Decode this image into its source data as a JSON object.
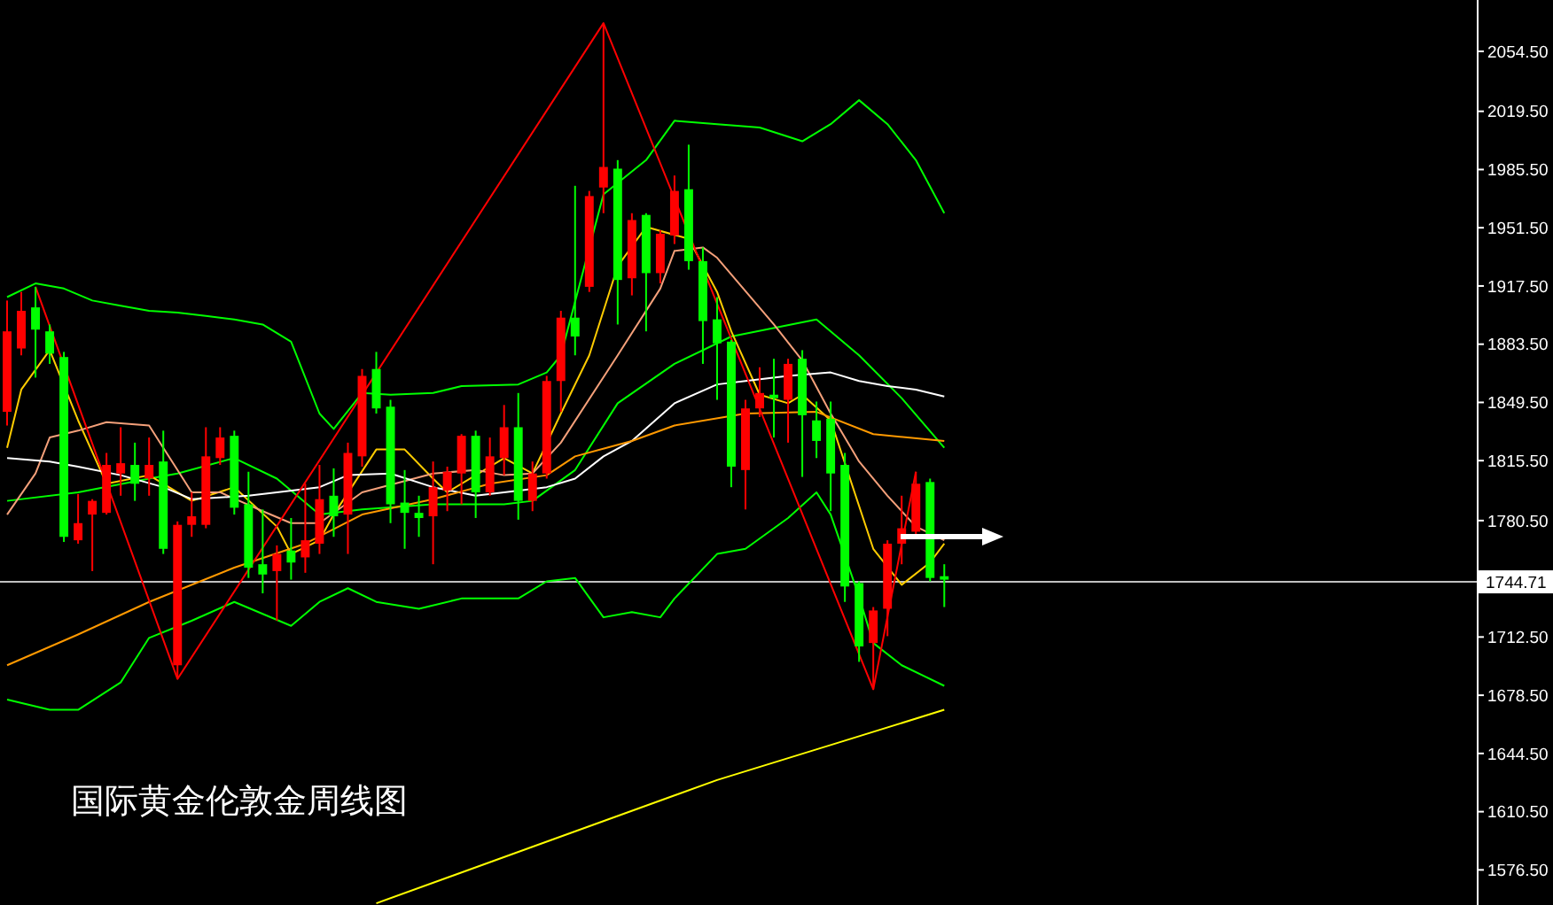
{
  "chart_data": {
    "type": "candlestick",
    "title": "国际黄金伦敦金周线图",
    "categories": [
      null,
      null,
      null,
      null,
      null,
      null,
      null,
      null,
      null,
      null,
      null,
      null,
      null,
      null,
      null,
      null,
      null,
      null,
      null,
      null,
      null,
      null,
      null,
      null,
      null,
      null,
      null,
      null,
      null,
      null,
      null,
      null,
      null,
      null,
      null,
      null,
      null,
      null,
      null,
      null,
      null,
      null,
      null,
      null,
      null,
      null,
      null,
      null,
      null,
      null,
      null,
      null,
      null,
      null,
      null,
      null,
      null,
      null,
      null,
      null,
      null,
      null,
      null,
      null,
      null,
      null,
      null,
      null,
      null,
      null,
      null,
      null,
      null,
      null,
      null,
      null,
      null,
      null,
      null,
      null,
      null,
      null,
      null,
      null,
      null,
      null,
      null,
      null,
      null,
      null,
      null,
      null,
      null,
      null,
      null,
      null,
      null,
      null,
      null,
      null,
      null,
      null,
      null,
      null
    ],
    "ohlc": [
      [
        1844,
        1909,
        1836,
        1891
      ],
      [
        1881,
        1914,
        1877,
        1903
      ],
      [
        1905,
        1917,
        1864,
        1892
      ],
      [
        1891,
        1895,
        1872,
        1878
      ],
      [
        1876,
        1879,
        1768,
        1771
      ],
      [
        1769,
        1796,
        1767,
        1779
      ],
      [
        1784,
        1793,
        1751,
        1792
      ],
      [
        1785,
        1820,
        1784,
        1813
      ],
      [
        1808,
        1835,
        1795,
        1814
      ],
      [
        1813,
        1826,
        1792,
        1802
      ],
      [
        1805,
        1829,
        1795,
        1813
      ],
      [
        1815,
        1833,
        1761,
        1764
      ],
      [
        1696,
        1780,
        1688,
        1778
      ],
      [
        1778,
        1797,
        1771,
        1783
      ],
      [
        1778,
        1835,
        1776,
        1818
      ],
      [
        1817,
        1835,
        1813,
        1829
      ],
      [
        1830,
        1833,
        1784,
        1788
      ],
      [
        1790,
        1809,
        1747,
        1753
      ],
      [
        1755,
        1787,
        1738,
        1749
      ],
      [
        1751,
        1766,
        1722,
        1761
      ],
      [
        1763,
        1782,
        1746,
        1756
      ],
      [
        1759,
        1802,
        1750,
        1769
      ],
      [
        1767,
        1813,
        1761,
        1793
      ],
      [
        1795,
        1811,
        1771,
        1783
      ],
      [
        1784,
        1826,
        1761,
        1820
      ],
      [
        1818,
        1869,
        1812,
        1865
      ],
      [
        1869,
        1879,
        1843,
        1846
      ],
      [
        1847,
        1851,
        1779,
        1790
      ],
      [
        1791,
        1810,
        1764,
        1785
      ],
      [
        1785,
        1795,
        1771,
        1782
      ],
      [
        1783,
        1815,
        1755,
        1800
      ],
      [
        1798,
        1812,
        1786,
        1809
      ],
      [
        1808,
        1831,
        1790,
        1830
      ],
      [
        1830,
        1833,
        1782,
        1797
      ],
      [
        1797,
        1829,
        1795,
        1818
      ],
      [
        1817,
        1848,
        1807,
        1835
      ],
      [
        1835,
        1855,
        1781,
        1792
      ],
      [
        1792,
        1815,
        1786,
        1808
      ],
      [
        1808,
        1865,
        1805,
        1862
      ],
      [
        1862,
        1903,
        1844,
        1899
      ],
      [
        1899,
        1976,
        1877,
        1888
      ],
      [
        1917,
        1973,
        1914,
        1970
      ],
      [
        1975,
        2071,
        1960,
        1987
      ],
      [
        1986,
        1991,
        1895,
        1921
      ],
      [
        1922,
        1960,
        1912,
        1956
      ],
      [
        1959,
        1960,
        1891,
        1925
      ],
      [
        1925,
        1950,
        1919,
        1948
      ],
      [
        1947,
        1982,
        1942,
        1973
      ],
      [
        1974,
        2000,
        1927,
        1932
      ],
      [
        1932,
        1940,
        1872,
        1897
      ],
      [
        1898,
        1911,
        1851,
        1884
      ],
      [
        1885,
        1886,
        1800,
        1812
      ],
      [
        1810,
        1851,
        1787,
        1846
      ],
      [
        1846,
        1870,
        1841,
        1855
      ],
      [
        1854,
        1875,
        1829,
        1852
      ],
      [
        1851,
        1875,
        1826,
        1872
      ],
      [
        1875,
        1880,
        1806,
        1842
      ],
      [
        1839,
        1850,
        1817,
        1827
      ],
      [
        1840,
        1850,
        1786,
        1808
      ],
      [
        1813,
        1820,
        1733,
        1742
      ],
      [
        1744,
        1745,
        1698,
        1707
      ],
      [
        1709,
        1730,
        1682,
        1728
      ],
      [
        1729,
        1769,
        1713,
        1767
      ],
      [
        1767,
        1795,
        1755,
        1776
      ],
      [
        1774,
        1809,
        1771,
        1802
      ],
      [
        1803,
        1805,
        1745,
        1747
      ],
      [
        1748,
        1755,
        1730,
        1746
      ],
      null,
      null,
      null,
      null,
      null,
      null,
      null,
      null,
      null,
      null,
      null,
      null,
      null,
      null,
      null,
      null,
      null,
      null,
      null,
      null,
      null,
      null,
      null,
      null,
      null,
      null,
      null,
      null,
      null,
      null,
      null,
      null,
      null,
      null,
      null,
      null,
      null
    ],
    "colors": [
      "#ff0000",
      "#ff0000",
      "#00ff00",
      "#00ff00",
      "#00ff00",
      "#ff0000",
      "#ff0000",
      "#ff0000",
      "#ff0000",
      "#00ff00",
      "#ff0000",
      "#00ff00",
      "#ff0000",
      "#ff0000",
      "#ff0000",
      "#ff0000",
      "#00ff00",
      "#00ff00",
      "#00ff00",
      "#ff0000",
      "#00ff00",
      "#ff0000",
      "#ff0000",
      "#00ff00",
      "#ff0000",
      "#ff0000",
      "#00ff00",
      "#00ff00",
      "#00ff00",
      "#00ff00",
      "#ff0000",
      "#ff0000",
      "#ff0000",
      "#00ff00",
      "#ff0000",
      "#ff0000",
      "#00ff00",
      "#ff0000",
      "#ff0000",
      "#ff0000",
      "#00ff00",
      "#ff0000",
      "#ff0000",
      "#00ff00",
      "#ff0000",
      "#00ff00",
      "#ff0000",
      "#ff0000",
      "#00ff00",
      "#00ff00",
      "#00ff00",
      "#00ff00",
      "#ff0000",
      "#ff0000",
      "#00ff00",
      "#ff0000",
      "#00ff00",
      "#00ff00",
      "#00ff00",
      "#00ff00",
      "#00ff00",
      "#ff0000",
      "#ff0000",
      "#ff0000",
      "#ff0000",
      "#00ff00",
      "#00ff00",
      null,
      null,
      null,
      null,
      null,
      null,
      null,
      null,
      null,
      null,
      null,
      null,
      null,
      null,
      null,
      null,
      null,
      null,
      null,
      null,
      null,
      null,
      null,
      null,
      null,
      null,
      null,
      null,
      null,
      null,
      null,
      null,
      null,
      null,
      null,
      null,
      null
    ],
    "series": [
      {
        "type": "line",
        "color": "#00ff00",
        "values": [
          1911,
          null,
          1919,
          null,
          1916,
          null,
          1909,
          null,
          1906,
          null,
          1903,
          null,
          1902,
          null,
          1900,
          null,
          1898,
          null,
          1895,
          null,
          1885,
          null,
          1843,
          1834,
          null,
          1855,
          null,
          1854,
          null,
          null,
          1855,
          null,
          1859,
          null,
          null,
          null,
          1860,
          null,
          1867,
          1877,
          null,
          null,
          1971,
          null,
          null,
          1991,
          null,
          2014,
          null,
          null,
          2012,
          null,
          null,
          2010,
          null,
          null,
          2002,
          null,
          2012,
          null,
          2026,
          null,
          2012,
          null,
          1991,
          null,
          1960,
          null,
          null,
          null,
          null,
          null,
          null,
          null,
          null,
          null,
          null,
          null,
          null,
          null,
          null,
          null,
          null,
          null,
          null,
          null,
          null,
          null,
          null,
          null,
          null,
          null,
          null,
          null,
          null,
          null,
          null,
          null,
          null,
          null,
          null,
          null,
          null,
          null
        ]
      },
      {
        "type": "line",
        "color": "#00ff00",
        "values": [
          1792,
          null,
          null,
          null,
          null,
          1797,
          null,
          null,
          null,
          null,
          1805,
          null,
          1808,
          null,
          null,
          null,
          1817,
          null,
          null,
          1805,
          null,
          null,
          1784,
          null,
          null,
          1787,
          null,
          null,
          null,
          null,
          1790,
          null,
          null,
          null,
          null,
          1790,
          null,
          1792,
          null,
          null,
          1810,
          null,
          null,
          1849,
          null,
          null,
          null,
          1872,
          null,
          null,
          null,
          1888,
          null,
          null,
          null,
          null,
          null,
          1898,
          null,
          null,
          1877,
          null,
          null,
          1852,
          null,
          null,
          1823,
          null,
          null,
          null,
          null,
          null,
          null,
          null,
          null,
          null,
          null,
          null,
          null,
          null,
          null,
          null,
          null,
          null,
          null,
          null,
          null,
          null,
          null,
          null,
          null,
          null,
          null,
          null,
          null,
          null,
          null,
          null,
          null,
          null,
          null,
          null,
          null,
          null
        ]
      },
      {
        "type": "line",
        "color": "#00ff00",
        "values": [
          1676,
          null,
          null,
          1670,
          null,
          1670,
          null,
          null,
          1686,
          null,
          1712,
          null,
          null,
          1722,
          null,
          null,
          1733,
          null,
          null,
          null,
          1719,
          null,
          1733,
          null,
          1741,
          null,
          1733,
          null,
          null,
          1729,
          null,
          null,
          1735,
          null,
          null,
          null,
          1735,
          null,
          1745,
          null,
          1747,
          null,
          1724,
          null,
          1727,
          null,
          1724,
          1735,
          null,
          null,
          1761,
          null,
          1764,
          null,
          null,
          1782,
          null,
          1797,
          1784,
          null,
          1736,
          1709,
          null,
          1696,
          null,
          null,
          1684,
          null,
          null,
          null,
          null,
          null,
          null,
          null,
          null,
          null,
          null,
          null,
          null,
          null,
          null,
          null,
          null,
          null,
          null,
          null,
          null,
          null,
          null,
          null,
          null,
          null,
          null,
          null,
          null,
          null,
          null,
          null,
          null,
          null,
          null,
          null,
          null,
          null
        ]
      },
      {
        "type": "line",
        "color": "#ffcc00",
        "values": [
          1823,
          1857,
          null,
          1880,
          null,
          1839,
          null,
          1802,
          null,
          null,
          1807,
          null,
          null,
          1792,
          null,
          null,
          1800,
          null,
          null,
          1777,
          1761,
          null,
          1769,
          1784,
          null,
          null,
          1822,
          null,
          1822,
          null,
          1805,
          1797,
          null,
          null,
          null,
          1817,
          null,
          1808,
          null,
          1843,
          null,
          1877,
          null,
          1929,
          null,
          1952,
          null,
          null,
          1945,
          null,
          1914,
          1891,
          null,
          1854,
          null,
          1849,
          1854,
          null,
          1839,
          null,
          null,
          1764,
          null,
          1743,
          null,
          1756,
          1767,
          null,
          null,
          null,
          null,
          null,
          null,
          null,
          null,
          null,
          null,
          null,
          null,
          null,
          null,
          null,
          null,
          null,
          null,
          null,
          null,
          null,
          null,
          null,
          null,
          null,
          null,
          null,
          null,
          null,
          null,
          null,
          null,
          null,
          null,
          null,
          null,
          null
        ]
      },
      {
        "type": "line",
        "color": "#f4a07a",
        "values": [
          1784,
          null,
          1808,
          1829,
          null,
          1833,
          null,
          1838,
          null,
          null,
          1836,
          1823,
          1810,
          1797,
          null,
          1797,
          null,
          null,
          1786,
          null,
          1779,
          null,
          1779,
          null,
          null,
          1797,
          null,
          null,
          null,
          null,
          1808,
          null,
          null,
          1810,
          null,
          1807,
          null,
          1808,
          null,
          1826,
          null,
          null,
          null,
          1877,
          null,
          null,
          1916,
          1938,
          null,
          1940,
          1934,
          null,
          null,
          null,
          1895,
          null,
          1874,
          null,
          1843,
          null,
          1815,
          null,
          1795,
          null,
          1777,
          null,
          1769,
          null,
          null,
          null,
          null,
          null,
          null,
          null,
          null,
          null,
          null,
          null,
          null,
          null,
          null,
          null,
          null,
          null,
          null,
          null,
          null,
          null,
          null,
          null,
          null,
          null,
          null,
          null,
          null,
          null,
          null,
          null,
          null,
          null,
          null,
          null,
          null,
          null
        ]
      },
      {
        "type": "line",
        "color": "#ffffff",
        "values": [
          1817,
          null,
          null,
          1815,
          null,
          1812,
          null,
          null,
          1807,
          null,
          null,
          1800,
          null,
          1793,
          null,
          null,
          null,
          1795,
          null,
          1797,
          null,
          null,
          1800,
          null,
          1807,
          null,
          null,
          1808,
          null,
          null,
          1800,
          null,
          null,
          1795,
          null,
          1797,
          null,
          null,
          1800,
          null,
          1805,
          null,
          1818,
          null,
          1827,
          null,
          null,
          1849,
          null,
          null,
          1860,
          null,
          1862,
          null,
          null,
          1865,
          null,
          null,
          1867,
          null,
          1862,
          null,
          1859,
          null,
          1857,
          null,
          1853,
          null,
          null,
          null,
          null,
          null,
          null,
          null,
          null,
          null,
          null,
          null,
          null,
          null,
          null,
          null,
          null,
          null,
          null,
          null,
          null,
          null,
          null,
          null,
          null,
          null,
          null,
          null,
          null,
          null,
          null,
          null,
          null,
          null,
          null,
          null,
          null,
          null
        ]
      },
      {
        "type": "line",
        "color": "#ff9900",
        "values": [
          1696,
          null,
          null,
          null,
          null,
          1714,
          null,
          null,
          null,
          null,
          1733,
          null,
          null,
          null,
          null,
          null,
          1753,
          null,
          null,
          null,
          null,
          1767,
          null,
          null,
          null,
          1784,
          null,
          null,
          null,
          null,
          1793,
          null,
          null,
          null,
          1802,
          null,
          null,
          null,
          1807,
          null,
          1818,
          null,
          null,
          null,
          1827,
          null,
          null,
          1836,
          null,
          null,
          null,
          null,
          1843,
          null,
          null,
          null,
          null,
          1844,
          null,
          null,
          null,
          1831,
          null,
          null,
          null,
          null,
          1827,
          null,
          null,
          null,
          null,
          null,
          null,
          null,
          null,
          null,
          null,
          null,
          null,
          null,
          null,
          null,
          null,
          null,
          null,
          null,
          null,
          null,
          null,
          null,
          null,
          null,
          null,
          null,
          null,
          null,
          null,
          null,
          null,
          null,
          null,
          null,
          null,
          null
        ]
      },
      {
        "type": "line",
        "color": "#ffff00",
        "values": [
          null,
          null,
          null,
          null,
          null,
          null,
          null,
          null,
          null,
          null,
          null,
          null,
          null,
          null,
          null,
          null,
          null,
          null,
          null,
          null,
          null,
          null,
          null,
          null,
          null,
          null,
          1557,
          null,
          null,
          null,
          null,
          null,
          null,
          null,
          null,
          null,
          null,
          1590,
          null,
          null,
          null,
          null,
          null,
          null,
          null,
          null,
          null,
          null,
          null,
          null,
          1629,
          null,
          null,
          null,
          null,
          null,
          null,
          null,
          null,
          1652,
          null,
          null,
          null,
          null,
          null,
          null,
          1670,
          null,
          null,
          null,
          null,
          null,
          null,
          null,
          null,
          null,
          null,
          null,
          null,
          null,
          null,
          null,
          null,
          null,
          null,
          null,
          null,
          null,
          null,
          null,
          null,
          null,
          null,
          null,
          null,
          null,
          null,
          null,
          null,
          null,
          null,
          null,
          null,
          null
        ]
      },
      {
        "type": "line",
        "color": "#ff0000",
        "values": [
          null,
          null,
          1917,
          null,
          null,
          null,
          null,
          null,
          null,
          null,
          null,
          null,
          1688,
          null,
          null,
          null,
          null,
          null,
          null,
          null,
          null,
          null,
          null,
          null,
          null,
          null,
          null,
          null,
          null,
          null,
          null,
          null,
          null,
          null,
          null,
          null,
          null,
          null,
          null,
          null,
          null,
          null,
          2071,
          null,
          null,
          null,
          null,
          null,
          null,
          null,
          null,
          null,
          null,
          null,
          null,
          null,
          null,
          null,
          null,
          null,
          null,
          1682,
          null,
          null,
          1809,
          null,
          null,
          null,
          null,
          null,
          null,
          null,
          null,
          null,
          null,
          null,
          null,
          null,
          null,
          null,
          null,
          null,
          null,
          null,
          null,
          null,
          null,
          null,
          null,
          null,
          null,
          null,
          null,
          null,
          null,
          null,
          null,
          null,
          null,
          null,
          null,
          null,
          null,
          null
        ]
      }
    ],
    "ylim": [
      1556,
      2084.5
    ],
    "yticks": [
      {
        "value": 2054.5,
        "label": "2054.50"
      },
      {
        "value": 2019.5,
        "label": "2019.50"
      },
      {
        "value": 1985.5,
        "label": "1985.50"
      },
      {
        "value": 1951.5,
        "label": "1951.50"
      },
      {
        "value": 1917.5,
        "label": "1917.50"
      },
      {
        "value": 1883.5,
        "label": "1883.50"
      },
      {
        "value": 1849.5,
        "label": "1849.50"
      },
      {
        "value": 1815.5,
        "label": "1815.50"
      },
      {
        "value": 1780.5,
        "label": "1780.50"
      },
      {
        "value": 1712.5,
        "label": "1712.50"
      },
      {
        "value": 1678.5,
        "label": "1678.50"
      },
      {
        "value": 1644.5,
        "label": "1644.50"
      },
      {
        "value": 1610.5,
        "label": "1610.50"
      },
      {
        "value": 1576.5,
        "label": "1576.50"
      }
    ],
    "tick_labels": "y",
    "ref_lines": [
      {
        "axis": "y",
        "value": 1744.71,
        "label": "1744.71",
        "color": "#c0c0c0"
      }
    ]
  }
}
